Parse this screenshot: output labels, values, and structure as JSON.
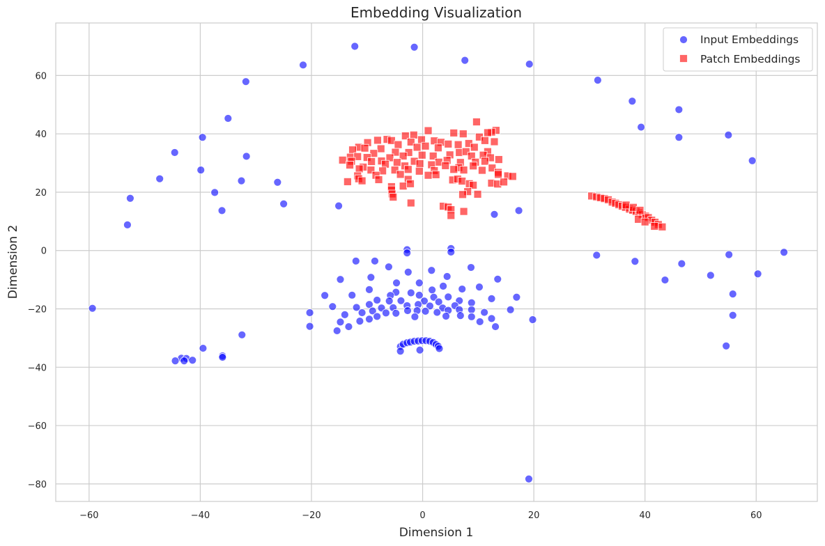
{
  "chart_data": {
    "type": "scatter",
    "title": "Embedding Visualization",
    "xlabel": "Dimension 1",
    "ylabel": "Dimension 2",
    "xlim": [
      -66,
      71
    ],
    "ylim": [
      -86,
      78
    ],
    "xticks": [
      -60,
      -40,
      -20,
      0,
      20,
      40,
      60
    ],
    "yticks": [
      -80,
      -60,
      -40,
      -20,
      0,
      20,
      40,
      60
    ],
    "grid": true,
    "legend_position": "top-right",
    "series": [
      {
        "name": "Input Embeddings",
        "marker": "circle",
        "color": "#0000ff",
        "alpha": 0.6,
        "points": [
          [
            -12.2,
            70.0
          ],
          [
            -1.5,
            69.7
          ],
          [
            7.6,
            65.2
          ],
          [
            19.2,
            63.9
          ],
          [
            -21.5,
            63.6
          ],
          [
            -31.8,
            57.9
          ],
          [
            31.5,
            58.4
          ],
          [
            37.7,
            51.2
          ],
          [
            46.1,
            48.3
          ],
          [
            -35.0,
            45.3
          ],
          [
            39.3,
            42.3
          ],
          [
            55.0,
            39.6
          ],
          [
            46.1,
            38.8
          ],
          [
            -39.6,
            38.8
          ],
          [
            -44.6,
            33.6
          ],
          [
            -31.7,
            32.3
          ],
          [
            59.3,
            30.8
          ],
          [
            -39.9,
            27.6
          ],
          [
            -47.3,
            24.6
          ],
          [
            -32.6,
            23.9
          ],
          [
            -26.1,
            23.4
          ],
          [
            -37.4,
            19.9
          ],
          [
            -52.6,
            17.9
          ],
          [
            -25.0,
            16.0
          ],
          [
            -15.1,
            15.3
          ],
          [
            -36.1,
            13.7
          ],
          [
            17.3,
            13.7
          ],
          [
            12.9,
            12.4
          ],
          [
            -53.1,
            8.8
          ],
          [
            -2.8,
            0.3
          ],
          [
            5.1,
            0.7
          ],
          [
            -2.8,
            -0.8
          ],
          [
            5.1,
            -0.5
          ],
          [
            31.3,
            -1.6
          ],
          [
            55.1,
            -1.4
          ],
          [
            65.0,
            -0.6
          ],
          [
            38.2,
            -3.7
          ],
          [
            46.6,
            -4.5
          ],
          [
            -8.6,
            -3.6
          ],
          [
            -12.0,
            -3.6
          ],
          [
            -6.1,
            -5.6
          ],
          [
            8.7,
            -5.8
          ],
          [
            1.6,
            -6.8
          ],
          [
            -2.6,
            -7.4
          ],
          [
            60.3,
            -8.0
          ],
          [
            51.8,
            -8.5
          ],
          [
            4.4,
            -8.9
          ],
          [
            -9.3,
            -9.2
          ],
          [
            13.5,
            -9.8
          ],
          [
            -14.8,
            -9.9
          ],
          [
            43.6,
            -10.1
          ],
          [
            -4.7,
            -11.1
          ],
          [
            -0.6,
            -11.1
          ],
          [
            10.2,
            -12.5
          ],
          [
            -9.6,
            -13.4
          ],
          [
            1.7,
            -13.5
          ],
          [
            7.1,
            -13.2
          ],
          [
            -4.8,
            -14.3
          ],
          [
            3.7,
            -12.2
          ],
          [
            -2.1,
            -14.5
          ],
          [
            55.8,
            -14.9
          ],
          [
            -17.6,
            -15.4
          ],
          [
            -12.7,
            -15.3
          ],
          [
            -5.8,
            -15.4
          ],
          [
            -0.6,
            -15.3
          ],
          [
            2.0,
            -16.0
          ],
          [
            4.6,
            -15.9
          ],
          [
            12.4,
            -16.5
          ],
          [
            16.9,
            -16.0
          ],
          [
            -8.2,
            -17.0
          ],
          [
            -3.9,
            -17.2
          ],
          [
            -6.0,
            -17.3
          ],
          [
            0.3,
            -17.3
          ],
          [
            2.9,
            -17.6
          ],
          [
            6.6,
            -17.2
          ],
          [
            -16.2,
            -19.2
          ],
          [
            -11.9,
            -19.5
          ],
          [
            -9.6,
            -18.5
          ],
          [
            -7.4,
            -19.7
          ],
          [
            -5.3,
            -19.6
          ],
          [
            -2.8,
            -18.9
          ],
          [
            -0.8,
            -18.5
          ],
          [
            1.3,
            -19.0
          ],
          [
            3.6,
            -19.7
          ],
          [
            5.8,
            -18.9
          ],
          [
            8.8,
            -17.9
          ],
          [
            -10.9,
            -21.3
          ],
          [
            -9.0,
            -20.7
          ],
          [
            -6.6,
            -21.4
          ],
          [
            -4.8,
            -21.5
          ],
          [
            -2.7,
            -20.6
          ],
          [
            -1.0,
            -20.6
          ],
          [
            0.5,
            -20.8
          ],
          [
            2.6,
            -21.2
          ],
          [
            4.6,
            -20.5
          ],
          [
            6.6,
            -20.3
          ],
          [
            8.8,
            -20.3
          ],
          [
            11.1,
            -21.2
          ],
          [
            15.8,
            -20.3
          ],
          [
            -20.3,
            -21.3
          ],
          [
            -14.0,
            -22.0
          ],
          [
            55.8,
            -22.2
          ],
          [
            -8.2,
            -22.6
          ],
          [
            -1.4,
            -22.7
          ],
          [
            4.2,
            -22.5
          ],
          [
            6.8,
            -22.3
          ],
          [
            8.8,
            -22.7
          ],
          [
            12.4,
            -23.3
          ],
          [
            19.8,
            -23.7
          ],
          [
            -14.8,
            -24.5
          ],
          [
            -11.3,
            -24.2
          ],
          [
            -9.6,
            -23.5
          ],
          [
            10.3,
            -24.4
          ],
          [
            -13.3,
            -26.1
          ],
          [
            13.1,
            -26.1
          ],
          [
            -20.3,
            -26.0
          ],
          [
            -15.4,
            -27.5
          ],
          [
            -32.5,
            -28.9
          ],
          [
            54.6,
            -32.7
          ],
          [
            -39.5,
            -33.5
          ],
          [
            -4.0,
            -32.9
          ],
          [
            -3.5,
            -32.1
          ],
          [
            -2.8,
            -31.6
          ],
          [
            -2.2,
            -31.4
          ],
          [
            -1.5,
            -31.1
          ],
          [
            -0.8,
            -31.0
          ],
          [
            -0.1,
            -30.9
          ],
          [
            0.6,
            -30.9
          ],
          [
            1.3,
            -31.1
          ],
          [
            1.9,
            -31.5
          ],
          [
            2.4,
            -32.2
          ],
          [
            2.8,
            -32.8
          ],
          [
            3.0,
            -33.6
          ],
          [
            -4.0,
            -34.5
          ],
          [
            -0.5,
            -34.1
          ],
          [
            -36.0,
            -36.1
          ],
          [
            -36.0,
            -36.6
          ],
          [
            -43.4,
            -36.9
          ],
          [
            -42.5,
            -37.0
          ],
          [
            -44.5,
            -37.8
          ],
          [
            -42.9,
            -37.8
          ],
          [
            -41.4,
            -37.6
          ],
          [
            -59.4,
            -19.8
          ],
          [
            19.1,
            -78.3
          ]
        ]
      },
      {
        "name": "Patch Embeddings",
        "marker": "square",
        "color": "#ff0000",
        "alpha": 0.6,
        "points": [
          [
            9.7,
            44.1
          ],
          [
            1.0,
            41.1
          ],
          [
            13.2,
            41.2
          ],
          [
            12.4,
            40.6
          ],
          [
            11.7,
            40.4
          ],
          [
            5.6,
            40.3
          ],
          [
            7.3,
            40.0
          ],
          [
            -1.6,
            39.6
          ],
          [
            -3.1,
            39.3
          ],
          [
            10.2,
            38.9
          ],
          [
            -6.4,
            38.1
          ],
          [
            -5.6,
            37.7
          ],
          [
            -8.1,
            37.8
          ],
          [
            -9.9,
            37.0
          ],
          [
            2.1,
            37.6
          ],
          [
            3.3,
            37.1
          ],
          [
            11.2,
            37.7
          ],
          [
            12.9,
            37.3
          ],
          [
            -0.2,
            38.0
          ],
          [
            -2.1,
            37.2
          ],
          [
            4.6,
            36.5
          ],
          [
            6.4,
            36.3
          ],
          [
            8.3,
            36.7
          ],
          [
            -4.4,
            36.3
          ],
          [
            -11.5,
            35.4
          ],
          [
            -10.4,
            35.1
          ],
          [
            -12.6,
            34.5
          ],
          [
            -7.5,
            34.9
          ],
          [
            9.3,
            35.4
          ],
          [
            2.8,
            35.2
          ],
          [
            -1.0,
            35.4
          ],
          [
            0.5,
            35.8
          ],
          [
            -4.9,
            33.7
          ],
          [
            -2.5,
            33.6
          ],
          [
            -8.8,
            33.3
          ],
          [
            6.6,
            33.6
          ],
          [
            7.8,
            33.9
          ],
          [
            11.7,
            33.9
          ],
          [
            -13.0,
            32.0
          ],
          [
            -14.4,
            31.0
          ],
          [
            -11.7,
            32.2
          ],
          [
            -10.0,
            31.9
          ],
          [
            -5.9,
            31.8
          ],
          [
            -3.5,
            32.4
          ],
          [
            -0.1,
            32.7
          ],
          [
            1.9,
            32.4
          ],
          [
            4.9,
            32.8
          ],
          [
            8.8,
            32.4
          ],
          [
            10.9,
            32.7
          ],
          [
            12.2,
            31.8
          ],
          [
            13.7,
            31.2
          ],
          [
            -12.8,
            30.6
          ],
          [
            -9.2,
            30.5
          ],
          [
            -7.4,
            30.7
          ],
          [
            -4.6,
            30.2
          ],
          [
            -1.5,
            30.6
          ],
          [
            2.9,
            30.3
          ],
          [
            4.4,
            30.9
          ],
          [
            6.8,
            30.2
          ],
          [
            9.5,
            30.3
          ],
          [
            11.2,
            30.6
          ],
          [
            -13.1,
            29.3
          ],
          [
            -10.7,
            28.6
          ],
          [
            -6.7,
            29.6
          ],
          [
            -3.2,
            29.0
          ],
          [
            -0.5,
            29.8
          ],
          [
            1.6,
            29.4
          ],
          [
            4.1,
            29.1
          ],
          [
            6.5,
            28.4
          ],
          [
            9.1,
            29.0
          ],
          [
            12.5,
            28.3
          ],
          [
            -11.4,
            28.0
          ],
          [
            -9.3,
            27.6
          ],
          [
            -7.2,
            27.3
          ],
          [
            -5.0,
            27.6
          ],
          [
            -2.6,
            27.8
          ],
          [
            -0.6,
            27.2
          ],
          [
            2.1,
            27.4
          ],
          [
            5.6,
            27.8
          ],
          [
            7.4,
            27.6
          ],
          [
            10.7,
            27.5
          ],
          [
            13.6,
            26.8
          ],
          [
            -11.7,
            25.6
          ],
          [
            -8.4,
            25.8
          ],
          [
            -4.0,
            26.1
          ],
          [
            1.0,
            25.8
          ],
          [
            2.4,
            26.0
          ],
          [
            13.6,
            26.1
          ],
          [
            15.3,
            25.6
          ],
          [
            16.2,
            25.4
          ],
          [
            -11.5,
            24.6
          ],
          [
            -10.9,
            23.9
          ],
          [
            -7.9,
            24.3
          ],
          [
            -2.6,
            24.4
          ],
          [
            5.4,
            24.2
          ],
          [
            6.3,
            24.5
          ],
          [
            7.1,
            23.8
          ],
          [
            -13.5,
            23.6
          ],
          [
            -5.6,
            21.9
          ],
          [
            -5.6,
            20.8
          ],
          [
            -5.5,
            19.4
          ],
          [
            -5.3,
            18.3
          ],
          [
            -3.5,
            22.1
          ],
          [
            -2.2,
            22.9
          ],
          [
            8.4,
            22.9
          ],
          [
            9.1,
            22.4
          ],
          [
            12.4,
            23.1
          ],
          [
            13.5,
            22.8
          ],
          [
            14.6,
            23.5
          ],
          [
            8.1,
            20.2
          ],
          [
            7.2,
            19.2
          ],
          [
            9.9,
            19.3
          ],
          [
            -2.1,
            16.3
          ],
          [
            3.7,
            15.2
          ],
          [
            4.6,
            14.9
          ],
          [
            5.1,
            14.0
          ],
          [
            5.1,
            12.0
          ],
          [
            7.4,
            13.4
          ],
          [
            30.4,
            18.7
          ],
          [
            31.3,
            18.4
          ],
          [
            32.0,
            18.1
          ],
          [
            32.7,
            17.8
          ],
          [
            33.4,
            17.4
          ],
          [
            34.1,
            16.6
          ],
          [
            34.7,
            16.2
          ],
          [
            35.3,
            15.7
          ],
          [
            35.9,
            15.2
          ],
          [
            36.5,
            14.8
          ],
          [
            37.2,
            14.2
          ],
          [
            37.8,
            13.8
          ],
          [
            38.4,
            13.4
          ],
          [
            38.9,
            12.9
          ],
          [
            39.5,
            12.3
          ],
          [
            40.1,
            11.8
          ],
          [
            40.6,
            11.3
          ],
          [
            41.2,
            10.4
          ],
          [
            41.8,
            9.7
          ],
          [
            42.4,
            8.9
          ],
          [
            43.1,
            8.1
          ],
          [
            36.6,
            15.6
          ],
          [
            37.9,
            14.8
          ],
          [
            39.1,
            13.8
          ],
          [
            38.8,
            10.7
          ],
          [
            40.0,
            9.8
          ],
          [
            41.7,
            8.3
          ]
        ]
      }
    ]
  }
}
